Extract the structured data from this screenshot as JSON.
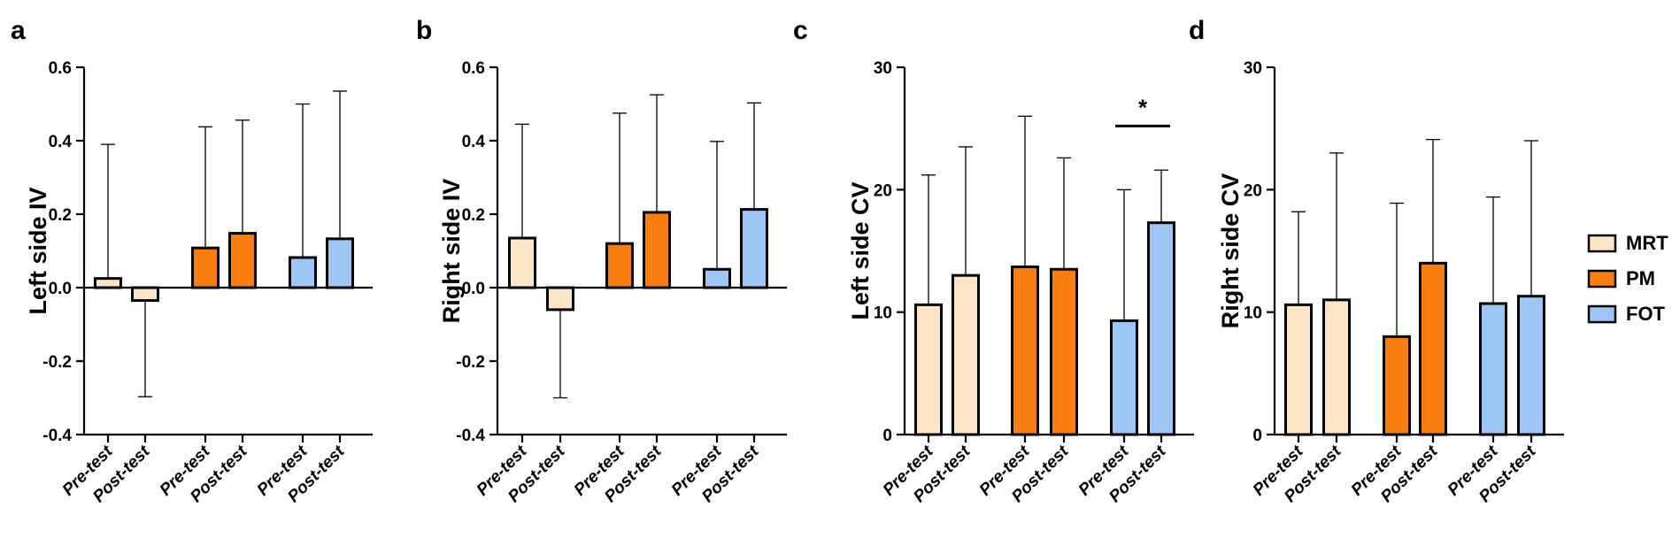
{
  "legend": [
    {
      "name": "MRT",
      "color": "#FCE4C6"
    },
    {
      "name": "PM",
      "color": "#FA7E0F"
    },
    {
      "name": "FOT",
      "color": "#9DC6F5"
    }
  ],
  "chart_data": [
    {
      "panel": "a",
      "type": "bar",
      "ylabel": "Left side IV",
      "ylim": [
        -0.4,
        0.6
      ],
      "yticks": [
        -0.4,
        -0.2,
        0.0,
        0.2,
        0.4,
        0.6
      ],
      "ytick_labels": [
        "-0.4",
        "-0.2",
        "0.0",
        "0.2",
        "0.4",
        "0.6"
      ],
      "categories": [
        "Pre-test",
        "Post-test",
        "Pre-test",
        "Post-test",
        "Pre-test",
        "Post-test"
      ],
      "groups": [
        "MRT",
        "MRT",
        "PM",
        "PM",
        "FOT",
        "FOT"
      ],
      "values": [
        0.025,
        -0.035,
        0.108,
        0.148,
        0.082,
        0.133
      ],
      "errors": [
        0.365,
        0.262,
        0.33,
        0.308,
        0.418,
        0.402
      ],
      "annotations": []
    },
    {
      "panel": "b",
      "type": "bar",
      "ylabel": "Right side IV",
      "ylim": [
        -0.4,
        0.6
      ],
      "yticks": [
        -0.4,
        -0.2,
        0.0,
        0.2,
        0.4,
        0.6
      ],
      "ytick_labels": [
        "-0.4",
        "-0.2",
        "0.0",
        "0.2",
        "0.4",
        "0.6"
      ],
      "categories": [
        "Pre-test",
        "Post-test",
        "Pre-test",
        "Post-test",
        "Pre-test",
        "Post-test"
      ],
      "groups": [
        "MRT",
        "MRT",
        "PM",
        "PM",
        "FOT",
        "FOT"
      ],
      "values": [
        0.135,
        -0.06,
        0.12,
        0.205,
        0.05,
        0.213
      ],
      "errors": [
        0.31,
        0.24,
        0.355,
        0.32,
        0.348,
        0.29
      ],
      "annotations": []
    },
    {
      "panel": "c",
      "type": "bar",
      "ylabel": "Left side CV",
      "ylim": [
        0,
        30
      ],
      "yticks": [
        0,
        10,
        20,
        30
      ],
      "ytick_labels": [
        "0",
        "10",
        "20",
        "30"
      ],
      "categories": [
        "Pre-test",
        "Post-test",
        "Pre-test",
        "Post-test",
        "Pre-test",
        "Post-test"
      ],
      "groups": [
        "MRT",
        "MRT",
        "PM",
        "PM",
        "FOT",
        "FOT"
      ],
      "values": [
        10.6,
        13.0,
        13.7,
        13.5,
        9.3,
        17.3
      ],
      "errors": [
        10.6,
        10.5,
        12.3,
        9.1,
        10.7,
        4.3
      ],
      "annotations": [
        {
          "text": "*",
          "from_bar": 4,
          "to_bar": 5,
          "y": 25.2
        }
      ]
    },
    {
      "panel": "d",
      "type": "bar",
      "ylabel": "Right side CV",
      "ylim": [
        0,
        30
      ],
      "yticks": [
        0,
        10,
        20,
        30
      ],
      "ytick_labels": [
        "0",
        "10",
        "20",
        "30"
      ],
      "categories": [
        "Pre-test",
        "Post-test",
        "Pre-test",
        "Post-test",
        "Pre-test",
        "Post-test"
      ],
      "groups": [
        "MRT",
        "MRT",
        "PM",
        "PM",
        "FOT",
        "FOT"
      ],
      "values": [
        10.6,
        11.0,
        8.0,
        14.0,
        10.7,
        11.3
      ],
      "errors": [
        7.6,
        12.0,
        10.9,
        10.1,
        8.7,
        12.7
      ],
      "annotations": []
    }
  ]
}
